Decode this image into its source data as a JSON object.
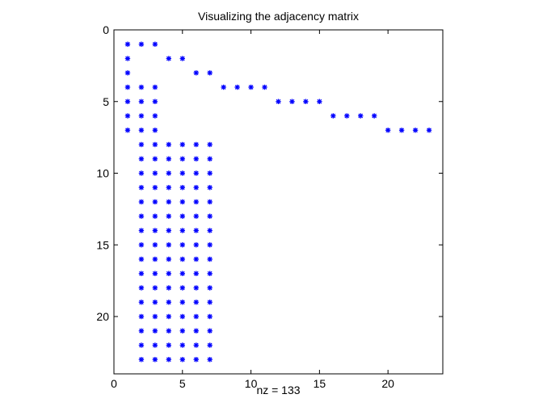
{
  "chart_data": {
    "type": "scatter",
    "title": "Visualizing the adjacency matrix",
    "xlabel": "nz = 133",
    "ylabel": "",
    "xlim": [
      0,
      24
    ],
    "ylim": [
      0,
      24
    ],
    "y_reversed": true,
    "x_ticks": [
      0,
      5,
      10,
      15,
      20
    ],
    "y_ticks": [
      0,
      5,
      10,
      15,
      20
    ],
    "grid": false,
    "marker": "asterisk",
    "marker_color": "#0000ff",
    "rows": [
      {
        "y": 1,
        "x": [
          1,
          2,
          3
        ]
      },
      {
        "y": 2,
        "x": [
          1,
          4,
          5
        ]
      },
      {
        "y": 3,
        "x": [
          1,
          6,
          7
        ]
      },
      {
        "y": 4,
        "x": [
          1,
          2,
          3,
          8,
          9,
          10,
          11
        ]
      },
      {
        "y": 5,
        "x": [
          1,
          2,
          3,
          12,
          13,
          14,
          15
        ]
      },
      {
        "y": 6,
        "x": [
          1,
          2,
          3,
          16,
          17,
          18,
          19
        ]
      },
      {
        "y": 7,
        "x": [
          1,
          2,
          3,
          20,
          21,
          22,
          23
        ]
      },
      {
        "y": 8,
        "x": [
          2,
          3,
          4,
          5,
          6,
          7
        ]
      },
      {
        "y": 9,
        "x": [
          2,
          3,
          4,
          5,
          6,
          7
        ]
      },
      {
        "y": 10,
        "x": [
          2,
          3,
          4,
          5,
          6,
          7
        ]
      },
      {
        "y": 11,
        "x": [
          2,
          3,
          4,
          5,
          6,
          7
        ]
      },
      {
        "y": 12,
        "x": [
          2,
          3,
          4,
          5,
          6,
          7
        ]
      },
      {
        "y": 13,
        "x": [
          2,
          3,
          4,
          5,
          6,
          7
        ]
      },
      {
        "y": 14,
        "x": [
          2,
          3,
          4,
          5,
          6,
          7
        ]
      },
      {
        "y": 15,
        "x": [
          2,
          3,
          4,
          5,
          6,
          7
        ]
      },
      {
        "y": 16,
        "x": [
          2,
          3,
          4,
          5,
          6,
          7
        ]
      },
      {
        "y": 17,
        "x": [
          2,
          3,
          4,
          5,
          6,
          7
        ]
      },
      {
        "y": 18,
        "x": [
          2,
          3,
          4,
          5,
          6,
          7
        ]
      },
      {
        "y": 19,
        "x": [
          2,
          3,
          4,
          5,
          6,
          7
        ]
      },
      {
        "y": 20,
        "x": [
          2,
          3,
          4,
          5,
          6,
          7
        ]
      },
      {
        "y": 21,
        "x": [
          2,
          3,
          4,
          5,
          6,
          7
        ]
      },
      {
        "y": 22,
        "x": [
          2,
          3,
          4,
          5,
          6,
          7
        ]
      },
      {
        "y": 23,
        "x": [
          2,
          3,
          4,
          5,
          6,
          7
        ]
      }
    ]
  }
}
